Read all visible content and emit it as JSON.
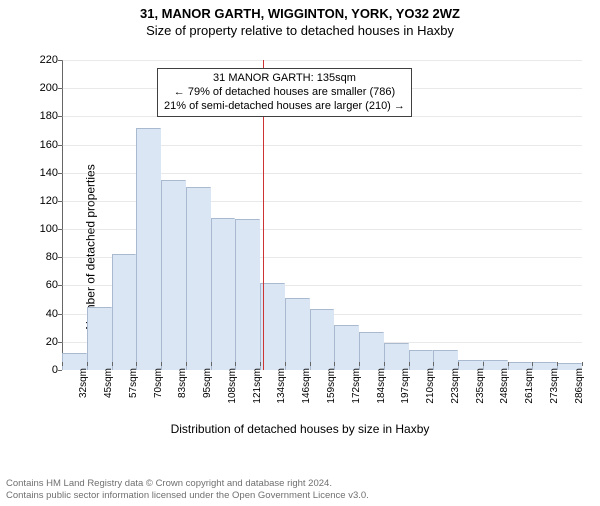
{
  "titles": {
    "line1": "31, MANOR GARTH, WIGGINTON, YORK, YO32 2WZ",
    "line2": "Size of property relative to detached houses in Haxby"
  },
  "axes": {
    "ylabel": "Number of detached properties",
    "xlabel": "Distribution of detached houses by size in Haxby"
  },
  "chart": {
    "type": "histogram",
    "ylim": [
      0,
      220
    ],
    "ytick_step": 20,
    "bar_fill": "#dbe6f4",
    "bar_stroke": "#a9b9cf",
    "background": "#ffffff",
    "grid_color": "#bfbfbf",
    "axis_color": "#666666",
    "marker_color": "#cc3333",
    "marker_x_value": 135,
    "x_start": 32,
    "x_step": 12.7,
    "x_suffix": "sqm",
    "x_count": 21,
    "x_labels": [
      "32sqm",
      "45sqm",
      "57sqm",
      "70sqm",
      "83sqm",
      "95sqm",
      "108sqm",
      "121sqm",
      "134sqm",
      "146sqm",
      "159sqm",
      "172sqm",
      "184sqm",
      "197sqm",
      "210sqm",
      "223sqm",
      "235sqm",
      "248sqm",
      "261sqm",
      "273sqm",
      "286sqm"
    ],
    "values": [
      12,
      45,
      82,
      172,
      135,
      130,
      108,
      107,
      62,
      51,
      43,
      32,
      27,
      19,
      14,
      14,
      7,
      7,
      6,
      6,
      5
    ]
  },
  "annotation": {
    "line1": "31 MANOR GARTH: 135sqm",
    "line2": "← 79% of detached houses are smaller (786)",
    "line3": "21% of semi-detached houses are larger (210) →"
  },
  "footer": {
    "line1": "Contains HM Land Registry data © Crown copyright and database right 2024.",
    "line2": "Contains public sector information licensed under the Open Government Licence v3.0."
  }
}
